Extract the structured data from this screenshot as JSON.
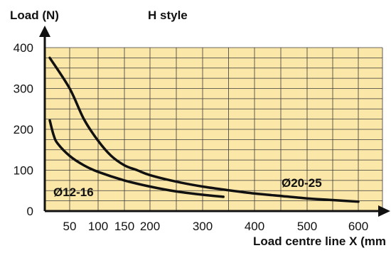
{
  "chart_data": {
    "type": "line",
    "title": "H style",
    "ylabel": "Load (N)",
    "xlabel": "Load centre line X (mm",
    "ylim": [
      0,
      400
    ],
    "y_ticks": [
      0,
      100,
      200,
      300,
      400
    ],
    "x_tick_labels": [
      "50",
      "100",
      "150",
      "200",
      "300",
      "400",
      "500",
      "600"
    ],
    "grid": true,
    "legend": "inline labels",
    "series": [
      {
        "name": "Ø12-16",
        "color": "#111111",
        "x": [
          25,
          30,
          35,
          50,
          75,
          100,
          150,
          200,
          250,
          300,
          340
        ],
        "y": [
          222,
          185,
          165,
          135,
          112,
          96,
          75,
          60,
          48,
          40,
          35
        ]
      },
      {
        "name": "Ø20-25",
        "color": "#111111",
        "x": [
          25,
          50,
          75,
          100,
          125,
          150,
          175,
          200,
          250,
          300,
          350,
          400,
          450,
          500,
          550,
          600
        ],
        "y": [
          375,
          300,
          225,
          172,
          135,
          112,
          100,
          88,
          72,
          60,
          51,
          43,
          37,
          31,
          27,
          23
        ]
      }
    ],
    "colors": {
      "plot_background": "#fbe7a8",
      "grid": "#3a3a3a",
      "axis": "#111111"
    }
  }
}
